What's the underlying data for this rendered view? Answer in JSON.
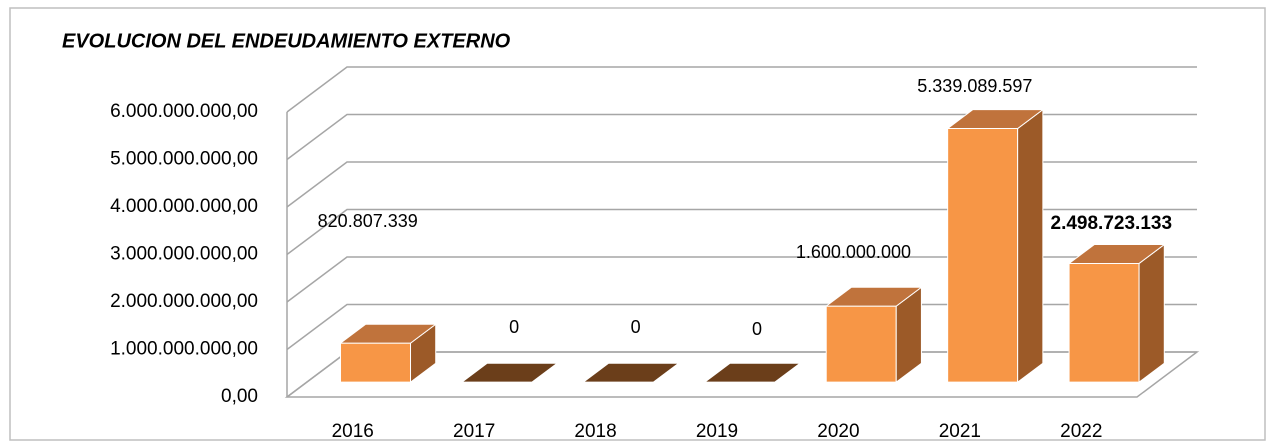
{
  "chart_data": {
    "type": "bar3d",
    "title": "EVOLUCION DEL ENDEUDAMIENTO EXTERNO",
    "categories": [
      "2016",
      "2017",
      "2018",
      "2019",
      "2020",
      "2021",
      "2022"
    ],
    "values": [
      820807339,
      0,
      0,
      0,
      1600000000,
      5339089597,
      2498723133
    ],
    "value_labels": [
      "820.807.339",
      "0",
      "0",
      "0",
      "1.600.000.000",
      "5.339.089.597",
      "2.498.723.133"
    ],
    "color": "#F79646",
    "ylim": [
      0,
      6000000000
    ],
    "yticks": [
      {
        "value": 0,
        "label": "0,00"
      },
      {
        "value": 1000000000,
        "label": "1.000.000.000,00"
      },
      {
        "value": 2000000000,
        "label": "2.000.000.000,00"
      },
      {
        "value": 3000000000,
        "label": "3.000.000.000,00"
      },
      {
        "value": 4000000000,
        "label": "4.000.000.000,00"
      },
      {
        "value": 5000000000,
        "label": "5.000.000.000,00"
      },
      {
        "value": 6000000000,
        "label": "6.000.000.000,00"
      }
    ],
    "grid": true
  }
}
